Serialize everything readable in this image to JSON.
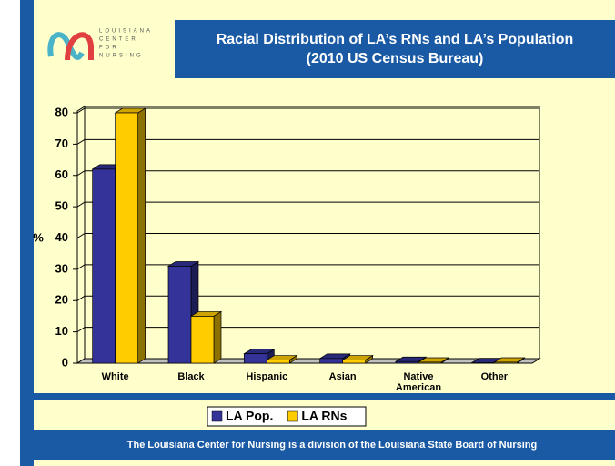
{
  "logo": [
    "LOUISIANA",
    "CENTER",
    "FOR",
    "NURSING"
  ],
  "footer": "The Louisiana Center for Nursing is a division of the Louisiana State Board of Nursing",
  "chart_data": {
    "type": "bar3d",
    "title": "Racial Distribution of LA’s RNs and LA’s Population",
    "subtitle": "(2010 US Census Bureau)",
    "ylabel": "%",
    "categories": [
      "White",
      "Black",
      "Hispanic",
      "Asian",
      "Native American",
      "Other"
    ],
    "series": [
      {
        "name": "LA Pop.",
        "color": "#333399",
        "values": [
          62,
          31,
          3,
          1.5,
          0.5,
          0.1
        ]
      },
      {
        "name": "LA RNs",
        "color": "#ffcc00",
        "values": [
          80,
          15,
          1,
          1,
          0.3,
          0.3
        ]
      }
    ],
    "ylim": [
      0,
      80
    ],
    "yticks": [
      0,
      10,
      20,
      30,
      40,
      50,
      60,
      70,
      80
    ],
    "grid": true,
    "legend": "bottom"
  }
}
